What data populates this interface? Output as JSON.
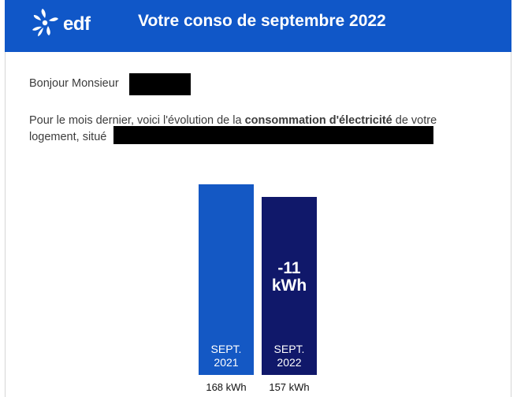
{
  "header": {
    "logo_text": "edf",
    "title": "Votre conso de septembre 2022",
    "background": "#1057c8"
  },
  "greeting": {
    "text": "Bonjour Monsieur",
    "suffix": ","
  },
  "intro": {
    "before": "Pour le mois dernier, voici l'évolution de la ",
    "bold": "consommation d'électricité",
    "after": " de votre",
    "line2": "logement, situé"
  },
  "chart_data": {
    "type": "bar",
    "categories": [
      "SEPT. 2021",
      "SEPT. 2022"
    ],
    "category_lines": [
      [
        "SEPT.",
        "2021"
      ],
      [
        "SEPT.",
        "2022"
      ]
    ],
    "values": [
      168,
      157
    ],
    "value_labels": [
      "168 kWh",
      "157 kWh"
    ],
    "delta_label": [
      "-11",
      "kWh"
    ],
    "colors": [
      "#1458c4",
      "#10186a"
    ],
    "title": "",
    "xlabel": "",
    "ylabel": ""
  }
}
